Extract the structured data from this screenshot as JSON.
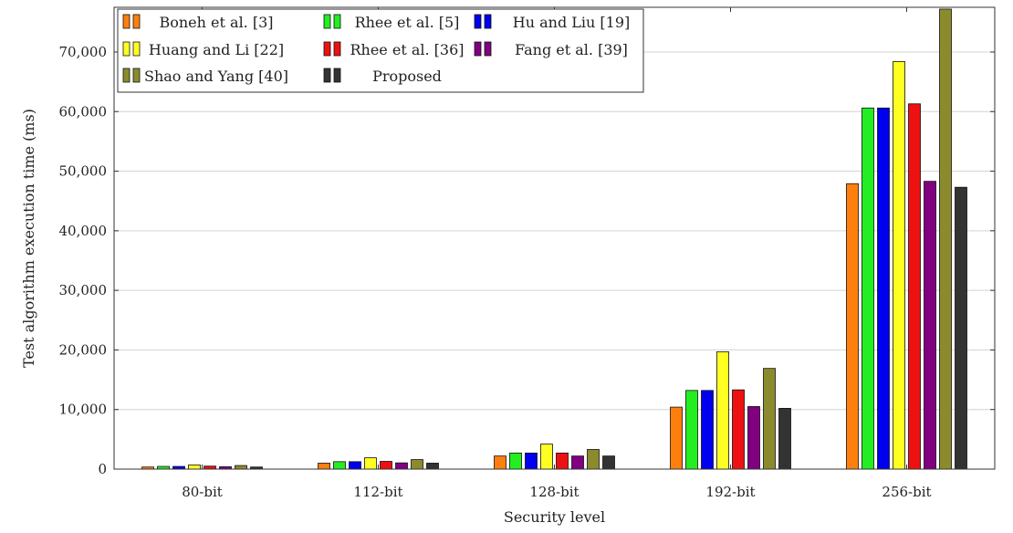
{
  "chart_data": {
    "type": "bar",
    "xlabel": "Security level",
    "ylabel": "Test algorithm execution time (ms)",
    "ylim": [
      0,
      77500
    ],
    "yticks": [
      0,
      10000,
      20000,
      30000,
      40000,
      50000,
      60000,
      70000
    ],
    "ytick_labels": [
      "0",
      "10,000",
      "20,000",
      "30,000",
      "40,000",
      "50,000",
      "60,000",
      "70,000"
    ],
    "grid": "horizontal",
    "legend_position": "top-left",
    "categories": [
      "80-bit",
      "112-bit",
      "128-bit",
      "192-bit",
      "256-bit"
    ],
    "series": [
      {
        "name": "Boneh et al. [3]",
        "color": "#ff7f0e",
        "values": [
          350,
          1000,
          2200,
          10400,
          47900
        ]
      },
      {
        "name": "Rhee et al. [5]",
        "color": "#22ee22",
        "values": [
          450,
          1250,
          2700,
          13200,
          60600
        ]
      },
      {
        "name": "Hu and Liu [19]",
        "color": "#0000ee",
        "values": [
          450,
          1250,
          2700,
          13200,
          60600
        ]
      },
      {
        "name": "Huang and Li [22]",
        "color": "#ffff22",
        "values": [
          700,
          1900,
          4200,
          19700,
          68400
        ]
      },
      {
        "name": "Rhee et al. [36]",
        "color": "#ee1111",
        "values": [
          500,
          1300,
          2700,
          13300,
          61300
        ]
      },
      {
        "name": "Fang et al. [39]",
        "color": "#800080",
        "values": [
          400,
          1050,
          2200,
          10500,
          48300
        ]
      },
      {
        "name": "Shao and Yang [40]",
        "color": "#8b8b2e",
        "values": [
          600,
          1600,
          3300,
          16900,
          77200
        ]
      },
      {
        "name": "Proposed",
        "color": "#333333",
        "values": [
          350,
          1000,
          2200,
          10200,
          47300
        ]
      }
    ]
  }
}
